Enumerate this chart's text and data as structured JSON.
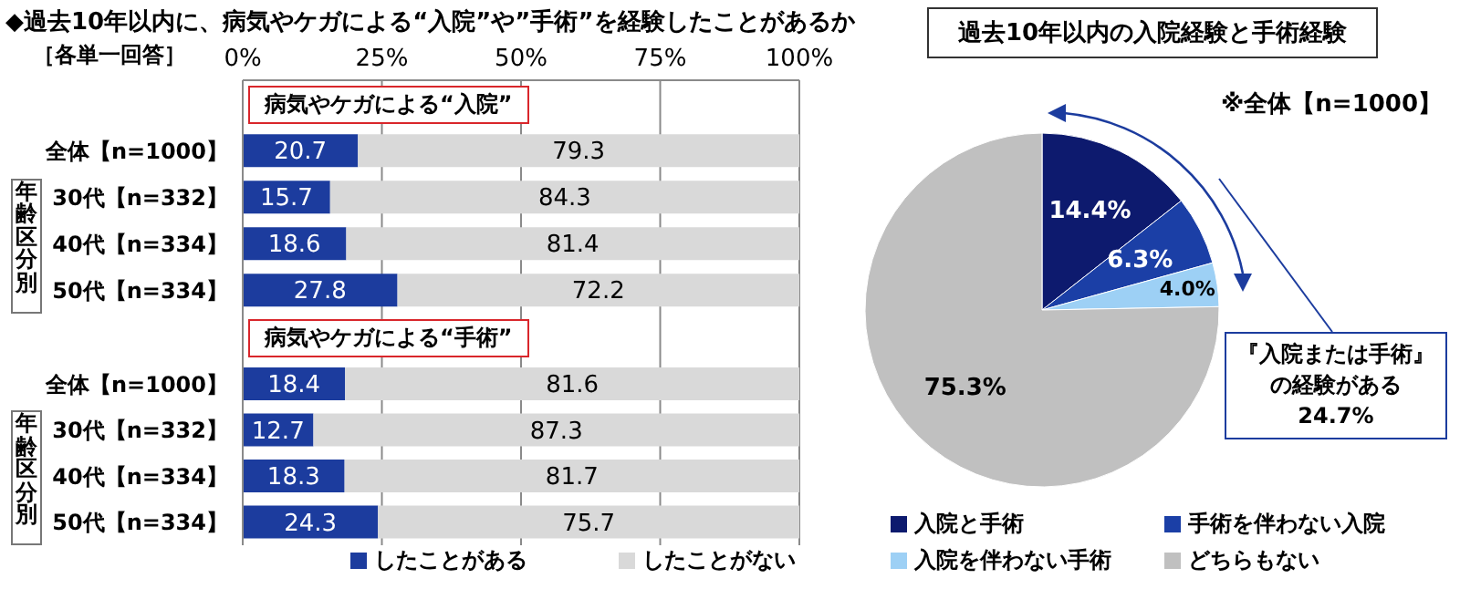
{
  "chart_data": [
    {
      "type": "bar",
      "orientation": "horizontal",
      "stacked": true,
      "title": "◆過去10年以内に、病気やケガによる“入院”や”手術”を経験したことがあるか",
      "subtitle": "病気やケガによる“入院”",
      "annotations": [
        "［各単一回答］",
        "年齢区分別"
      ],
      "categories": [
        "全体【n=1000】",
        "30代【n=332】",
        "40代【n=334】",
        "50代【n=334】"
      ],
      "series": [
        {
          "color": "#1c3c9e",
          "values": [
            20.7,
            15.7,
            18.6,
            27.8
          ]
        },
        {
          "color": "#d9d9d9",
          "values": [
            79.3,
            84.3,
            81.4,
            72.2
          ]
        }
      ],
      "xlim": [
        0,
        100
      ],
      "xticks": [
        {
          "value": 0,
          "label": "0%"
        },
        {
          "value": 25,
          "label": "25%"
        },
        {
          "value": 50,
          "label": "50%"
        },
        {
          "value": 75,
          "label": "75%"
        },
        {
          "value": 100,
          "label": "100%"
        }
      ],
      "grid": "x",
      "data_labels": true
    },
    {
      "type": "bar",
      "orientation": "horizontal",
      "stacked": true,
      "title": "病気やケガによる“手術”",
      "annotations": [
        "年齢区分別"
      ],
      "categories": [
        "全体【n=1000】",
        "30代【n=332】",
        "40代【n=334】",
        "50代【n=334】"
      ],
      "series": [
        {
          "name": "したことがある",
          "color": "#1c3c9e",
          "values": [
            18.4,
            12.7,
            18.3,
            24.3
          ]
        },
        {
          "name": "したことがない",
          "color": "#d9d9d9",
          "values": [
            81.6,
            87.3,
            81.7,
            75.7
          ]
        }
      ],
      "xlim": [
        0,
        100
      ],
      "xticks": [
        0,
        25,
        50,
        75,
        100
      ],
      "tick_labels": "y",
      "grid": "x",
      "data_labels": true,
      "legend": "bottom"
    },
    {
      "type": "pie",
      "title": "過去10年以内の入院経験と手術経験",
      "annotations": [
        "※全体【n=1000】",
        "『入院または手術』の経験がある",
        "24.7%"
      ],
      "categories": [
        "入院と手術",
        "手術を伴わない入院",
        "入院を伴わない手術",
        "どちらもない"
      ],
      "values": [
        14.4,
        6.3,
        4.0,
        75.3
      ],
      "colors": [
        "#0d1a6e",
        "#1b3fa6",
        "#9dd0f5",
        "#c0c0c0"
      ],
      "value_labels": [
        "14.4%",
        "6.3%",
        "4.0%",
        "75.3%"
      ],
      "legend": "bottom"
    }
  ]
}
